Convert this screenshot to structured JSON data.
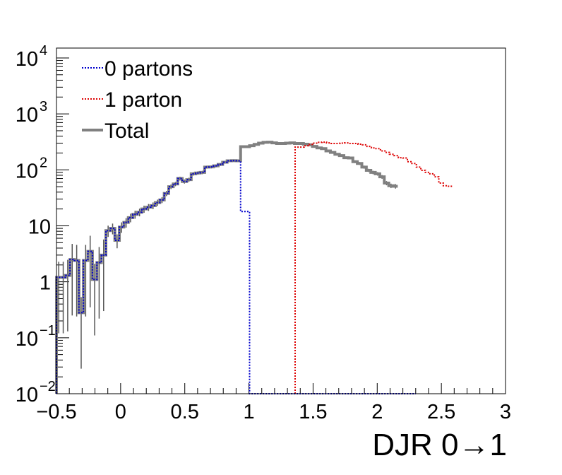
{
  "chart_data": {
    "type": "line",
    "xlabel": "DJR 0→1",
    "ylabel": "",
    "xlim": [
      -0.5,
      3.0
    ],
    "ylim": [
      0.01,
      15000
    ],
    "yscale": "log",
    "x_ticks": [
      -0.5,
      0,
      0.5,
      1,
      1.5,
      2,
      2.5,
      3
    ],
    "x_tick_labels": [
      "−0.5",
      "0",
      "0.5",
      "1",
      "1.5",
      "2",
      "2.5",
      "3"
    ],
    "y_ticks": [
      {
        "value": 0.01,
        "base": "10",
        "exp": "−2"
      },
      {
        "value": 0.1,
        "base": "10",
        "exp": "−1"
      },
      {
        "value": 1,
        "base": "1",
        "exp": ""
      },
      {
        "value": 10,
        "base": "10",
        "exp": ""
      },
      {
        "value": 100,
        "base": "10",
        "exp": "2"
      },
      {
        "value": 1000,
        "base": "10",
        "exp": "3"
      },
      {
        "value": 10000,
        "base": "10",
        "exp": "4"
      }
    ],
    "legend_position": "top-left",
    "bin_width": 0.035,
    "series": [
      {
        "name": "0 partons",
        "color": "#0000cc",
        "style": "dotted",
        "x_start": -0.5,
        "values": [
          1.2,
          1.2,
          1.3,
          2.5,
          2.4,
          0.28,
          2.4,
          3.5,
          1.1,
          2.2,
          3.0,
          8.2,
          9.0,
          5.5,
          9.5,
          11.5,
          14.0,
          16.0,
          17.5,
          20.0,
          21.5,
          23.0,
          26.0,
          29.0,
          38.0,
          50.0,
          56.0,
          70.0,
          62.0,
          67.0,
          85.0,
          88.0,
          90.0,
          112.0,
          113.0,
          118.0,
          125.0,
          137.0,
          145.0,
          146.0,
          145.0,
          18.0,
          18.0,
          0.01,
          0.01,
          0.01,
          0.01,
          0.01,
          0.01,
          0.01,
          0.01,
          0.01,
          0.01,
          0.01,
          0.01,
          0.01,
          0.01,
          0.01,
          0.01,
          0.01,
          0.01,
          0.01,
          0.01,
          0.01,
          0.01,
          0.01,
          0.01,
          0.01,
          0.01,
          0.01,
          0.01,
          0.01,
          0.01,
          0.01,
          0.01,
          0.01,
          0.01,
          0.01,
          0.01,
          0.01
        ]
      },
      {
        "name": "1 parton",
        "color": "#dd0000",
        "style": "dotted",
        "x_start": 1.36,
        "values": [
          255.0,
          255.0,
          270.0,
          285.0,
          300.0,
          310.0,
          312.0,
          303.0,
          296.0,
          296.0,
          300.0,
          303.0,
          296.0,
          296.0,
          287.0,
          280.0,
          262.0,
          247.0,
          240.0,
          218.0,
          205.0,
          190.0,
          180.0,
          165.0,
          163.0,
          140.0,
          130.0,
          112.0,
          98.0,
          90.0,
          85.0,
          75.0,
          58.0,
          52.0,
          51.0
        ]
      },
      {
        "name": "Total",
        "color": "#808080",
        "style": "solid",
        "x_start": -0.5,
        "values": [
          1.2,
          1.2,
          1.3,
          2.5,
          2.4,
          0.28,
          2.4,
          3.5,
          1.1,
          2.2,
          3.0,
          8.2,
          9.0,
          5.5,
          9.5,
          11.5,
          14.0,
          16.0,
          17.5,
          20.0,
          21.5,
          23.0,
          26.0,
          29.0,
          38.0,
          50.0,
          56.0,
          70.0,
          62.0,
          67.0,
          85.0,
          88.0,
          90.0,
          112.0,
          113.0,
          118.0,
          125.0,
          137.0,
          145.0,
          146.0,
          145.0,
          260.0,
          260.0,
          270.0,
          285.0,
          300.0,
          310.0,
          312.0,
          303.0,
          296.0,
          296.0,
          300.0,
          303.0,
          296.0,
          296.0,
          287.0,
          280.0,
          262.0,
          247.0,
          240.0,
          218.0,
          205.0,
          190.0,
          180.0,
          165.0,
          163.0,
          140.0,
          130.0,
          112.0,
          98.0,
          90.0,
          85.0,
          75.0,
          58.0,
          52.0,
          51.0
        ]
      }
    ]
  }
}
